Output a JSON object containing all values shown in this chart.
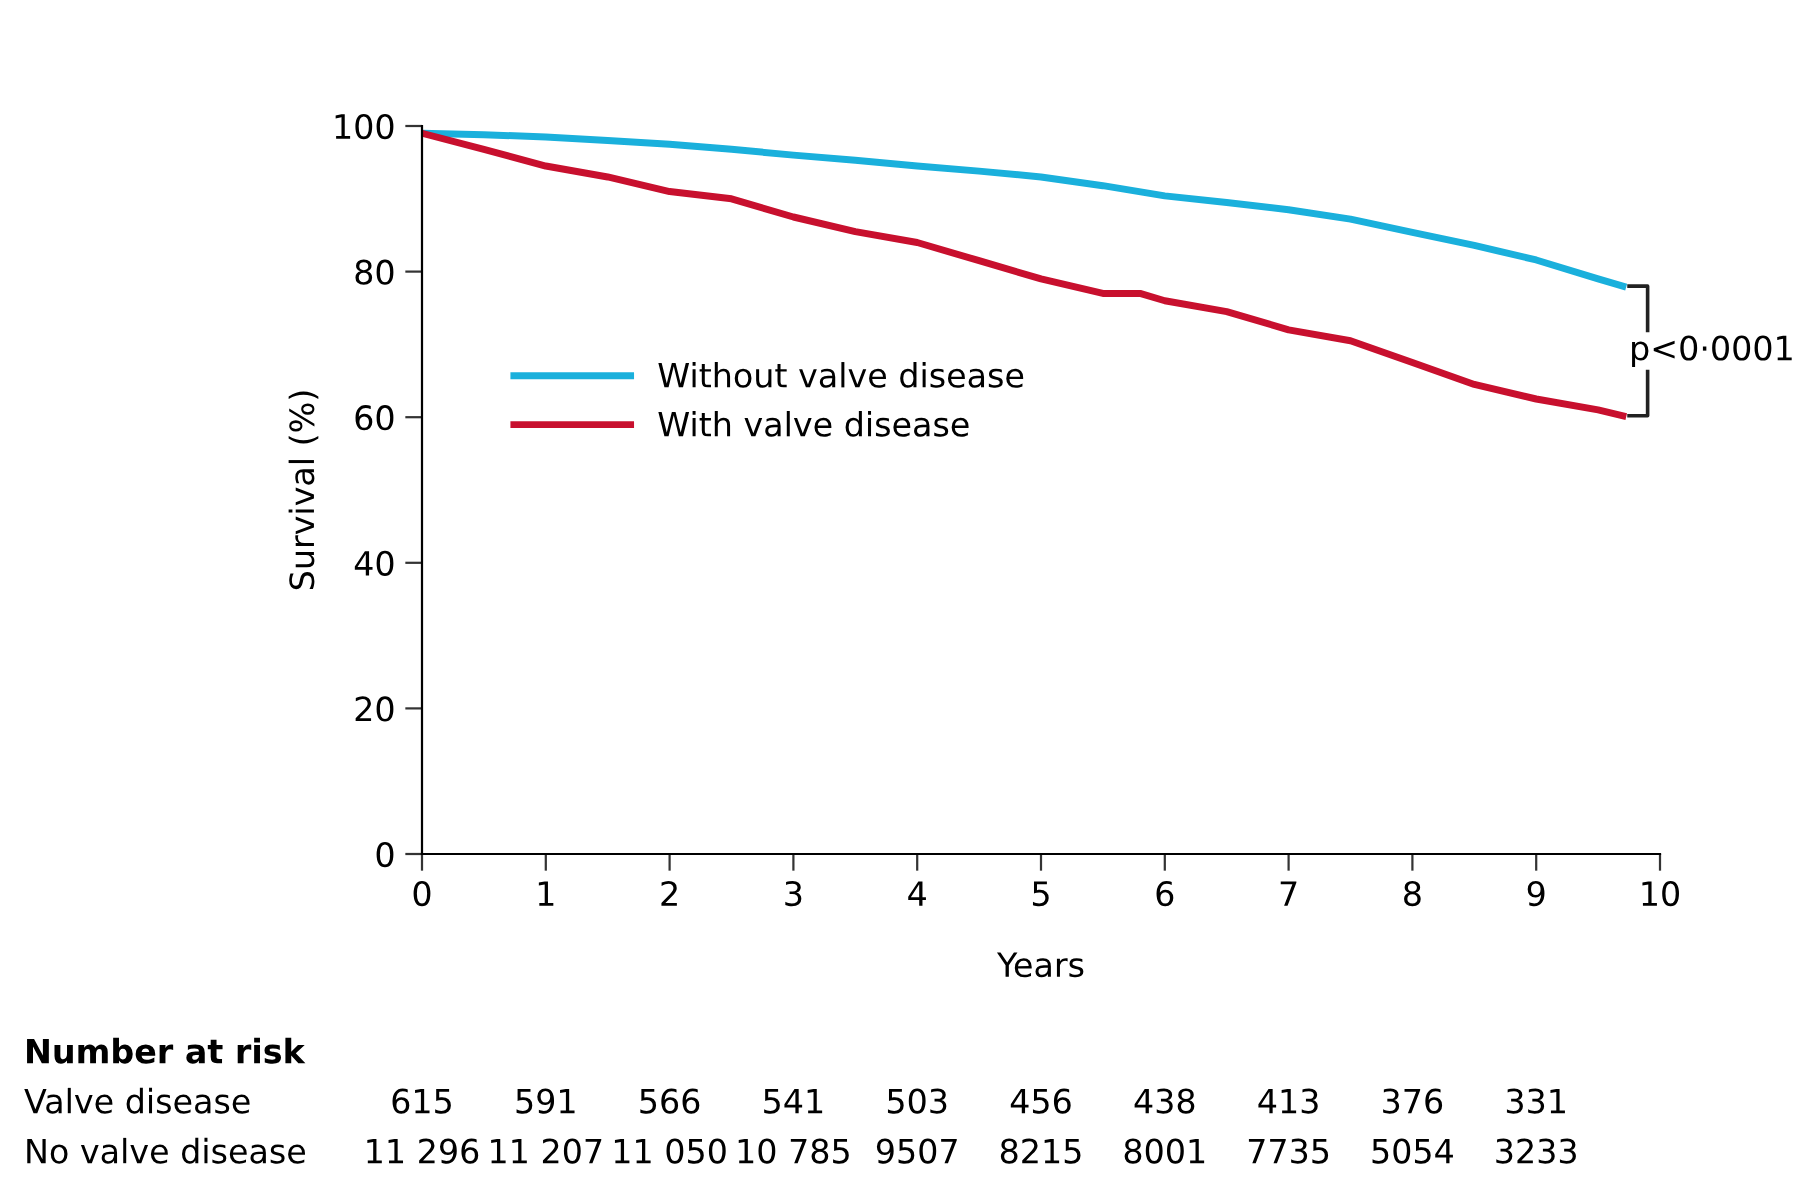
{
  "chart_data": {
    "type": "line",
    "xlabel": "Years",
    "ylabel": "Survival (%)",
    "xlim": [
      0,
      10
    ],
    "ylim": [
      0,
      100
    ],
    "xticks": [
      0,
      1,
      2,
      3,
      4,
      5,
      6,
      7,
      8,
      9,
      10
    ],
    "yticks": [
      0,
      20,
      40,
      60,
      80,
      100
    ],
    "grid": false,
    "legend": "left",
    "marker": "none",
    "line_style": "solid",
    "series": [
      {
        "name": "Without valve disease",
        "color": "#1ab0dc",
        "x": [
          0,
          0.5,
          1,
          1.5,
          2,
          2.5,
          3,
          3.5,
          4,
          4.5,
          5,
          5.5,
          6,
          6.5,
          7,
          7.5,
          8,
          8.5,
          9,
          9.5,
          9.7
        ],
        "values": [
          99,
          98.8,
          98.5,
          98,
          97.5,
          96.8,
          96,
          95.3,
          94.5,
          93.8,
          93,
          91.8,
          90.4,
          89.5,
          88.5,
          87.2,
          85.4,
          83.6,
          81.6,
          79,
          78
        ]
      },
      {
        "name": "With valve disease",
        "color": "#c8102e",
        "x": [
          0,
          0.5,
          1,
          1.5,
          2,
          2.5,
          3,
          3.5,
          4,
          4.5,
          5,
          5.5,
          5.8,
          6,
          6.5,
          7,
          7.5,
          8,
          8.5,
          9,
          9.5,
          9.7
        ],
        "values": [
          99,
          96.8,
          94.5,
          93,
          91,
          90,
          87.5,
          85.5,
          84,
          81.5,
          79,
          77,
          77,
          76,
          74.5,
          72,
          70.5,
          67.5,
          64.5,
          62.5,
          61,
          60.2
        ]
      }
    ],
    "annotations": [
      "p<0·0001",
      "Number at risk",
      "Valve disease",
      "615",
      "591",
      "566",
      "541",
      "503",
      "456",
      "438",
      "413",
      "376",
      "331",
      "No valve disease",
      "11 296",
      "11 207",
      "11 050",
      "10 785",
      "9507",
      "8215",
      "8001",
      "7735",
      "5054",
      "3233"
    ]
  }
}
